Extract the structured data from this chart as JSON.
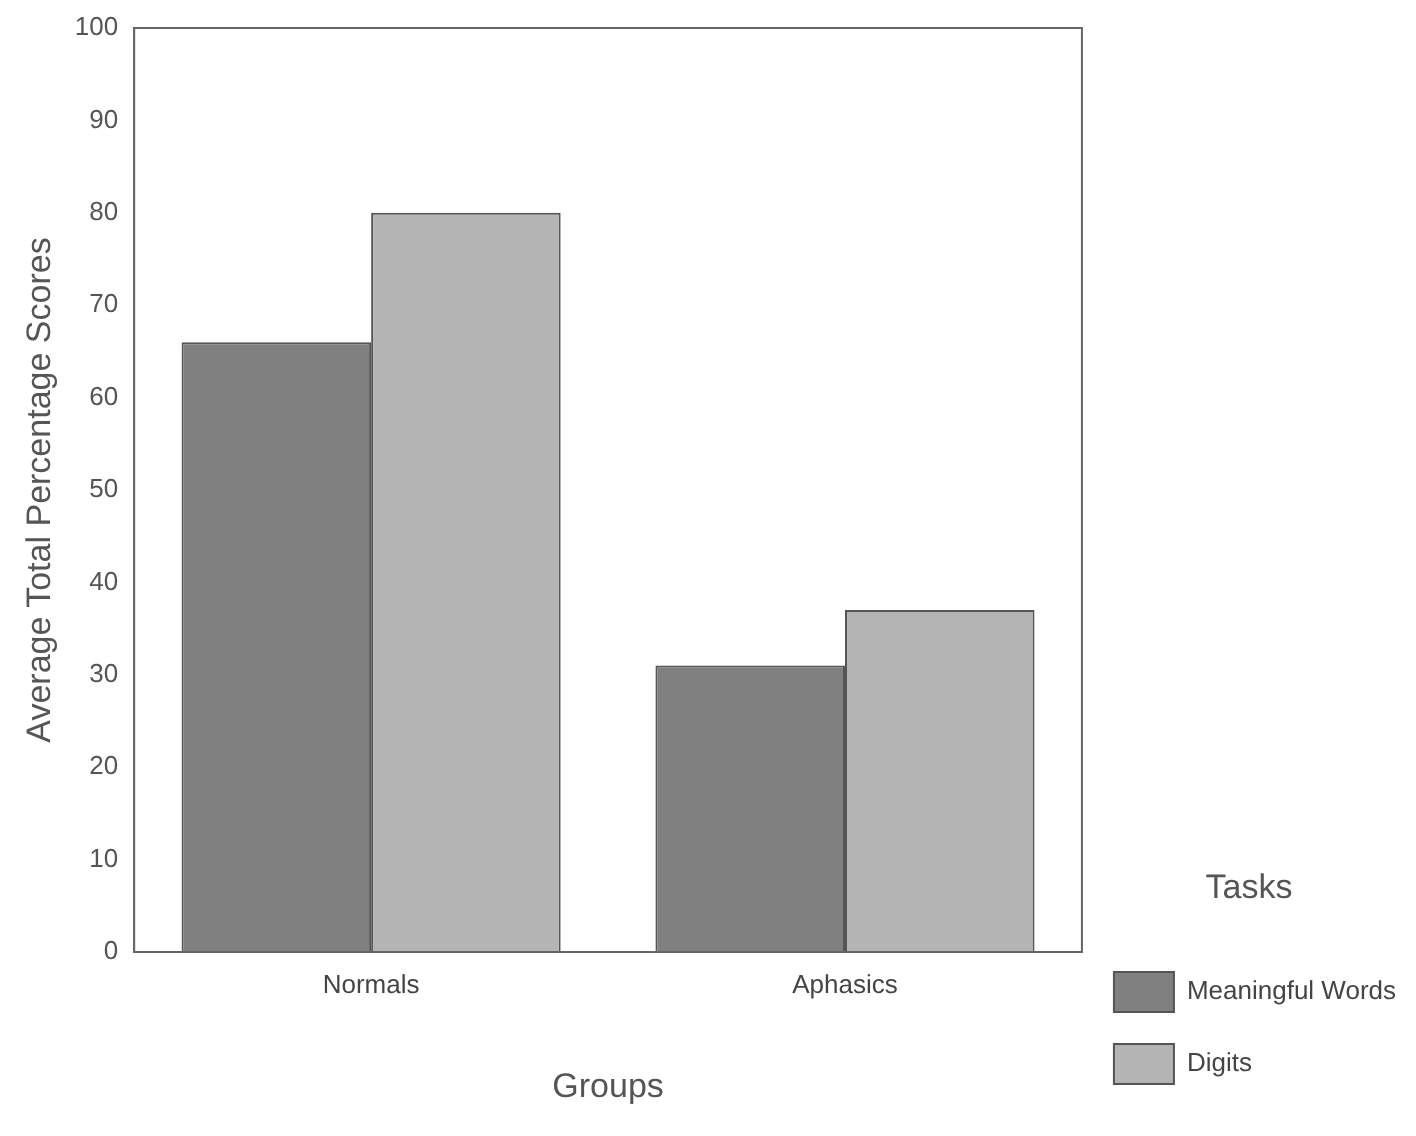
{
  "chart_data": {
    "type": "bar",
    "xlabel": "Groups",
    "ylabel": "Average Total Percentage Scores",
    "legend_title": "Tasks",
    "categories": [
      "Normals",
      "Aphasics"
    ],
    "series": [
      {
        "name": "Meaningful Words",
        "color": "#808080",
        "values": [
          66,
          31
        ]
      },
      {
        "name": "Digits",
        "color": "#b4b4b4",
        "values": [
          80,
          37
        ]
      }
    ],
    "ylim": [
      0,
      100
    ],
    "yticks": [
      0,
      10,
      20,
      30,
      40,
      50,
      60,
      70,
      80,
      90,
      100
    ],
    "grid": false,
    "legend": "bottom right"
  }
}
